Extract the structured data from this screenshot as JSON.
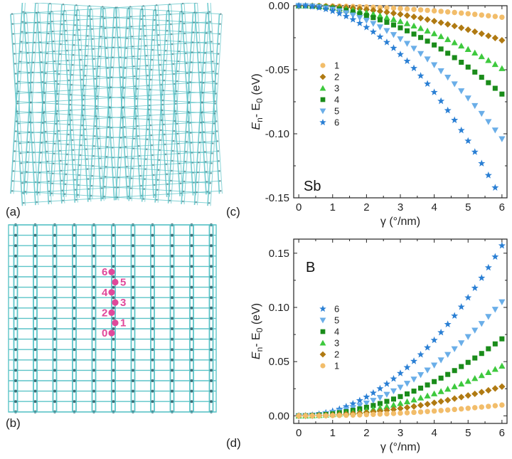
{
  "panels": {
    "a": "(a)",
    "b": "(b)",
    "c": "(c)",
    "d": "(d)"
  },
  "colors": {
    "lattice": "#5cc4c8",
    "atom": "#3d6f78",
    "site": "#e0489a",
    "s1": "#f2bd6a",
    "s2": "#b07a12",
    "s3": "#3ec93e",
    "s4": "#1a8c1a",
    "s5": "#6aaee8",
    "s6": "#2a7fd4"
  },
  "lattice_sites": [
    "0",
    "1",
    "2",
    "3",
    "4",
    "5",
    "6"
  ],
  "chart_data": [
    {
      "type": "scatter",
      "title": "",
      "inset_label": "Sb",
      "xlabel": "γ (°/nm)",
      "ylabel_main": "E",
      "ylabel_sub1": "n",
      "ylabel_mid": "- E",
      "ylabel_sub2": "0",
      "ylabel_unit": " (eV)",
      "xlim": [
        -0.15,
        6.15
      ],
      "ylim": [
        -0.15,
        0.0
      ],
      "xticks": [
        "0",
        "1",
        "2",
        "3",
        "4",
        "5",
        "6"
      ],
      "yticks": [
        "0.00",
        "-0.05",
        "-0.10",
        "-0.15"
      ],
      "x_start": 0,
      "x_end": 6,
      "x_step": 0.2,
      "legend_position": "center-left",
      "series": [
        {
          "name": "1",
          "marker": "circle",
          "end_value": -0.009
        },
        {
          "name": "2",
          "marker": "diamond",
          "end_value": -0.027
        },
        {
          "name": "3",
          "marker": "triangle-up",
          "end_value": -0.049
        },
        {
          "name": "4",
          "marker": "square",
          "end_value": -0.069
        },
        {
          "name": "5",
          "marker": "triangle-down",
          "end_value": -0.104
        },
        {
          "name": "6",
          "marker": "star",
          "end_value": -0.152
        }
      ]
    },
    {
      "type": "scatter",
      "title": "",
      "inset_label": "B",
      "xlabel": "γ (°/nm)",
      "ylabel_main": "E",
      "ylabel_sub1": "n",
      "ylabel_mid": "- E",
      "ylabel_sub2": "0",
      "ylabel_unit": " (eV)",
      "xlim": [
        -0.15,
        6.15
      ],
      "ylim": [
        -0.007,
        0.163
      ],
      "xticks": [
        "0",
        "1",
        "2",
        "3",
        "4",
        "5",
        "6"
      ],
      "yticks": [
        "0.00",
        "0.05",
        "0.10",
        "0.15"
      ],
      "x_start": 0,
      "x_end": 6,
      "x_step": 0.2,
      "legend_position": "center-left",
      "series": [
        {
          "name": "6",
          "marker": "star",
          "end_value": 0.157
        },
        {
          "name": "5",
          "marker": "triangle-down",
          "end_value": 0.105
        },
        {
          "name": "4",
          "marker": "square",
          "end_value": 0.071
        },
        {
          "name": "3",
          "marker": "triangle-up",
          "end_value": 0.046
        },
        {
          "name": "2",
          "marker": "diamond",
          "end_value": 0.027
        },
        {
          "name": "1",
          "marker": "circle",
          "end_value": 0.01
        }
      ]
    }
  ]
}
